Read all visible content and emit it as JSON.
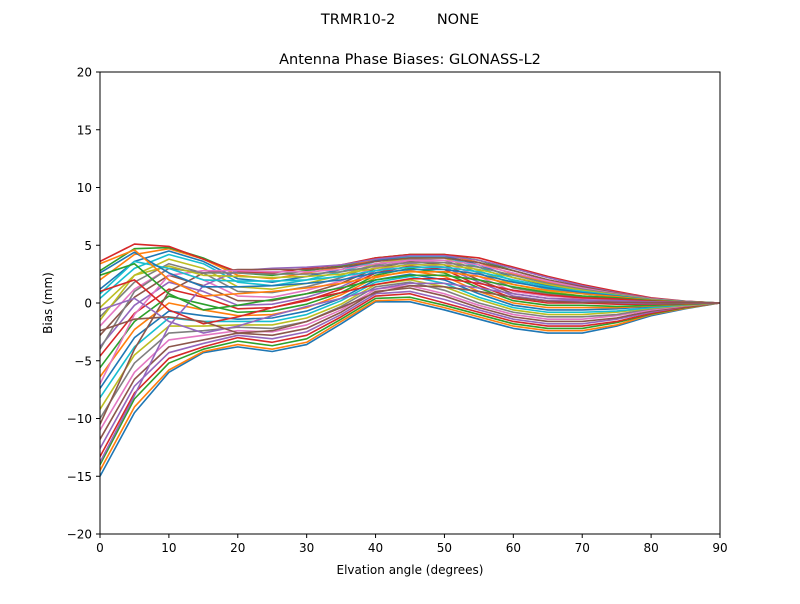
{
  "chart_data": {
    "type": "line",
    "suptitle": "TRMR10-2         NONE",
    "title": "Antenna Phase Biases: GLONASS-L2",
    "xlabel": "Elvation angle (degrees)",
    "ylabel": "Bias (mm)",
    "xlim": [
      0,
      90
    ],
    "ylim": [
      -20,
      20
    ],
    "xticks": [
      0,
      10,
      20,
      30,
      40,
      50,
      60,
      70,
      80,
      90
    ],
    "yticks": [
      -20,
      -15,
      -10,
      -5,
      0,
      5,
      10,
      15,
      20
    ],
    "grid": false,
    "legend": "none",
    "x": [
      0,
      5,
      10,
      15,
      20,
      25,
      30,
      35,
      40,
      45,
      50,
      55,
      60,
      65,
      70,
      75,
      80,
      85,
      90
    ],
    "series_colors": [
      "#1f77b4",
      "#ff7f0e",
      "#2ca02c",
      "#d62728",
      "#9467bd",
      "#8c564b",
      "#e377c2",
      "#7f7f7f",
      "#bcbd22",
      "#17becf"
    ],
    "series": [
      {
        "values": [
          -15.0,
          -9.5,
          -6.0,
          -4.3,
          -3.8,
          -4.2,
          -3.6,
          -1.8,
          0.1,
          0.1,
          -0.6,
          -1.4,
          -2.2,
          -2.6,
          -2.6,
          -2.0,
          -1.1,
          -0.5,
          0.0
        ]
      },
      {
        "values": [
          -14.5,
          -9.0,
          -5.8,
          -4.2,
          -3.6,
          -4.0,
          -3.4,
          -1.6,
          0.2,
          0.3,
          -0.4,
          -1.2,
          -2.0,
          -2.4,
          -2.4,
          -1.9,
          -1.0,
          -0.45,
          0.0
        ]
      },
      {
        "values": [
          -14.0,
          -8.3,
          -5.2,
          -4.0,
          -3.3,
          -3.7,
          -3.1,
          -1.4,
          0.4,
          0.5,
          -0.2,
          -1.0,
          -1.8,
          -2.2,
          -2.2,
          -1.7,
          -0.95,
          -0.4,
          0.0
        ]
      },
      {
        "values": [
          -13.3,
          -7.8,
          -4.8,
          -3.8,
          -3.0,
          -3.4,
          -2.8,
          -1.2,
          0.6,
          0.8,
          0.0,
          -0.8,
          -1.6,
          -2.0,
          -2.0,
          -1.6,
          -0.9,
          -0.35,
          0.0
        ]
      },
      {
        "values": [
          -12.6,
          -7.2,
          -4.3,
          -3.5,
          -2.8,
          -3.1,
          -2.5,
          -1.0,
          0.8,
          1.0,
          0.3,
          -0.6,
          -1.4,
          -1.8,
          -1.8,
          -1.4,
          -0.8,
          -0.3,
          0.0
        ]
      },
      {
        "values": [
          -11.8,
          -6.6,
          -3.8,
          -3.2,
          -2.6,
          -2.8,
          -2.2,
          -0.8,
          1.0,
          1.3,
          0.6,
          -0.4,
          -1.2,
          -1.6,
          -1.6,
          -1.3,
          -0.7,
          -0.3,
          0.0
        ]
      },
      {
        "values": [
          -11.0,
          -6.0,
          -3.2,
          -2.8,
          -2.4,
          -2.5,
          -1.9,
          -0.6,
          1.2,
          1.5,
          0.8,
          -0.2,
          -1.0,
          -1.4,
          -1.4,
          -1.1,
          -0.6,
          -0.25,
          0.0
        ]
      },
      {
        "values": [
          -10.0,
          -5.2,
          -2.6,
          -2.4,
          -2.1,
          -2.2,
          -1.6,
          -0.3,
          1.4,
          1.8,
          1.1,
          0.0,
          -0.8,
          -1.2,
          -1.2,
          -1.0,
          -0.5,
          -0.2,
          0.0
        ]
      },
      {
        "values": [
          -9.2,
          -4.5,
          -2.0,
          -2.0,
          -1.9,
          -1.9,
          -1.3,
          -0.1,
          1.6,
          2.0,
          1.4,
          0.3,
          -0.6,
          -1.0,
          -1.0,
          -0.8,
          -0.45,
          -0.2,
          0.0
        ]
      },
      {
        "values": [
          -8.2,
          -3.8,
          -1.3,
          -1.6,
          -1.6,
          -1.6,
          -1.0,
          0.2,
          1.8,
          2.3,
          1.7,
          0.5,
          -0.4,
          -0.8,
          -0.8,
          -0.7,
          -0.4,
          -0.15,
          0.0
        ]
      },
      {
        "values": [
          -7.4,
          -3.0,
          -0.7,
          -1.1,
          -1.4,
          -1.3,
          -0.7,
          0.4,
          2.0,
          2.5,
          2.0,
          0.8,
          -0.2,
          -0.6,
          -0.6,
          -0.5,
          -0.3,
          -0.12,
          0.0
        ]
      },
      {
        "values": [
          -6.4,
          -2.3,
          0.0,
          -0.6,
          -1.1,
          -1.0,
          -0.4,
          0.7,
          2.2,
          2.8,
          2.3,
          1.0,
          0.0,
          -0.4,
          -0.4,
          -0.4,
          -0.25,
          -0.1,
          0.0
        ]
      },
      {
        "values": [
          -5.6,
          -1.6,
          0.6,
          -0.1,
          -0.8,
          -0.7,
          -0.1,
          0.9,
          2.4,
          3.0,
          2.6,
          1.3,
          0.2,
          -0.2,
          -0.2,
          -0.3,
          -0.2,
          -0.08,
          0.0
        ]
      },
      {
        "values": [
          -4.6,
          -0.9,
          1.2,
          0.5,
          -0.5,
          -0.4,
          0.2,
          1.2,
          2.6,
          3.2,
          2.9,
          1.5,
          0.4,
          0.0,
          0.0,
          -0.1,
          -0.1,
          -0.05,
          0.0
        ]
      },
      {
        "values": [
          -3.8,
          -0.2,
          1.8,
          1.0,
          -0.2,
          -0.1,
          0.5,
          1.4,
          2.8,
          3.4,
          3.1,
          1.8,
          0.6,
          0.2,
          0.2,
          0.0,
          -0.05,
          -0.02,
          0.0
        ]
      },
      {
        "values": [
          -2.8,
          0.5,
          2.4,
          1.5,
          0.2,
          0.2,
          0.8,
          1.7,
          3.0,
          3.6,
          3.3,
          2.0,
          0.8,
          0.4,
          0.3,
          0.1,
          0.0,
          0.0,
          0.0
        ]
      },
      {
        "values": [
          -2.0,
          1.2,
          3.0,
          2.0,
          0.6,
          0.5,
          1.1,
          1.9,
          3.1,
          3.7,
          3.5,
          2.3,
          1.0,
          0.6,
          0.4,
          0.2,
          0.05,
          0.02,
          0.0
        ]
      },
      {
        "values": [
          -1.2,
          1.8,
          3.4,
          2.6,
          1.0,
          0.9,
          1.4,
          2.2,
          3.3,
          3.8,
          3.7,
          2.6,
          1.3,
          0.8,
          0.5,
          0.3,
          0.1,
          0.04,
          0.0
        ]
      },
      {
        "values": [
          -0.4,
          2.4,
          3.8,
          3.0,
          1.4,
          1.2,
          1.7,
          2.4,
          3.4,
          3.9,
          3.9,
          2.8,
          1.6,
          1.0,
          0.6,
          0.4,
          0.15,
          0.06,
          0.0
        ]
      },
      {
        "values": [
          0.4,
          3.0,
          4.2,
          3.4,
          1.8,
          1.5,
          2.0,
          2.7,
          3.6,
          4.0,
          4.0,
          3.1,
          1.9,
          1.2,
          0.8,
          0.5,
          0.2,
          0.08,
          0.0
        ]
      },
      {
        "values": [
          1.2,
          3.6,
          4.5,
          3.6,
          2.1,
          1.8,
          2.3,
          2.9,
          3.7,
          4.1,
          4.1,
          3.3,
          2.2,
          1.5,
          1.0,
          0.6,
          0.3,
          0.1,
          0.0
        ]
      },
      {
        "values": [
          2.0,
          4.2,
          4.7,
          3.8,
          2.4,
          2.1,
          2.6,
          3.1,
          3.8,
          4.2,
          4.2,
          3.5,
          2.5,
          1.8,
          1.2,
          0.7,
          0.35,
          0.12,
          0.0
        ]
      },
      {
        "values": [
          2.8,
          4.7,
          4.8,
          3.9,
          2.6,
          2.4,
          2.8,
          3.2,
          3.9,
          4.2,
          4.2,
          3.7,
          2.8,
          2.0,
          1.4,
          0.8,
          0.4,
          0.14,
          0.0
        ]
      },
      {
        "values": [
          3.6,
          5.1,
          4.9,
          3.8,
          2.7,
          2.6,
          3.0,
          3.3,
          3.9,
          4.2,
          4.2,
          3.9,
          3.1,
          2.3,
          1.6,
          1.0,
          0.45,
          0.16,
          0.0
        ]
      },
      {
        "values": [
          -13.8,
          -8.0,
          -2.0,
          1.5,
          2.8,
          3.0,
          3.1,
          3.3,
          3.8,
          4.1,
          4.1,
          3.7,
          3.0,
          2.2,
          1.5,
          0.9,
          0.4,
          0.15,
          0.0
        ]
      },
      {
        "values": [
          -10.5,
          -4.0,
          1.0,
          2.6,
          2.9,
          2.9,
          2.9,
          3.1,
          3.6,
          3.9,
          3.9,
          3.5,
          2.8,
          2.0,
          1.4,
          0.85,
          0.38,
          0.14,
          0.0
        ]
      },
      {
        "values": [
          -7.0,
          -1.0,
          2.4,
          2.8,
          2.8,
          2.7,
          2.7,
          2.9,
          3.4,
          3.7,
          3.7,
          3.3,
          2.6,
          1.9,
          1.3,
          0.8,
          0.35,
          0.13,
          0.0
        ]
      },
      {
        "values": [
          -4.0,
          1.0,
          3.0,
          2.6,
          2.6,
          2.5,
          2.5,
          2.7,
          3.2,
          3.5,
          3.5,
          3.1,
          2.4,
          1.7,
          1.2,
          0.75,
          0.32,
          0.12,
          0.0
        ]
      },
      {
        "values": [
          -1.5,
          2.4,
          3.2,
          2.4,
          2.3,
          2.2,
          2.3,
          2.5,
          3.0,
          3.3,
          3.3,
          2.9,
          2.2,
          1.6,
          1.1,
          0.7,
          0.3,
          0.11,
          0.0
        ]
      },
      {
        "values": [
          0.8,
          3.6,
          3.0,
          2.0,
          1.9,
          1.9,
          2.0,
          2.3,
          2.8,
          3.1,
          3.1,
          2.7,
          2.0,
          1.4,
          1.0,
          0.65,
          0.28,
          0.1,
          0.0
        ]
      },
      {
        "values": [
          2.6,
          4.4,
          2.6,
          1.4,
          1.4,
          1.5,
          1.7,
          2.0,
          2.6,
          2.9,
          2.9,
          2.5,
          1.8,
          1.3,
          0.9,
          0.6,
          0.26,
          0.09,
          0.0
        ]
      },
      {
        "values": [
          3.4,
          4.6,
          2.0,
          0.6,
          0.8,
          1.0,
          1.3,
          1.7,
          2.3,
          2.7,
          2.7,
          2.3,
          1.6,
          1.1,
          0.8,
          0.55,
          0.24,
          0.08,
          0.0
        ]
      },
      {
        "values": [
          2.4,
          3.4,
          0.8,
          -0.6,
          -0.2,
          0.3,
          0.8,
          1.3,
          2.0,
          2.4,
          2.4,
          2.0,
          1.4,
          0.9,
          0.6,
          0.45,
          0.2,
          0.07,
          0.0
        ]
      },
      {
        "values": [
          1.0,
          2.0,
          -0.6,
          -1.8,
          -1.2,
          -0.4,
          0.3,
          0.9,
          1.6,
          2.1,
          2.1,
          1.7,
          1.1,
          0.7,
          0.45,
          0.35,
          0.16,
          0.06,
          0.0
        ]
      },
      {
        "values": [
          -0.6,
          0.4,
          -1.6,
          -2.6,
          -2.0,
          -1.1,
          -0.3,
          0.4,
          1.2,
          1.7,
          1.7,
          1.3,
          0.8,
          0.4,
          0.25,
          0.2,
          0.1,
          0.04,
          0.0
        ]
      },
      {
        "values": [
          -2.4,
          -1.4,
          -1.2,
          -1.6,
          -2.6,
          -2.4,
          -1.6,
          -0.4,
          0.9,
          1.5,
          1.4,
          1.0,
          0.5,
          0.15,
          0.05,
          0.05,
          0.04,
          0.02,
          0.0
        ]
      }
    ]
  }
}
